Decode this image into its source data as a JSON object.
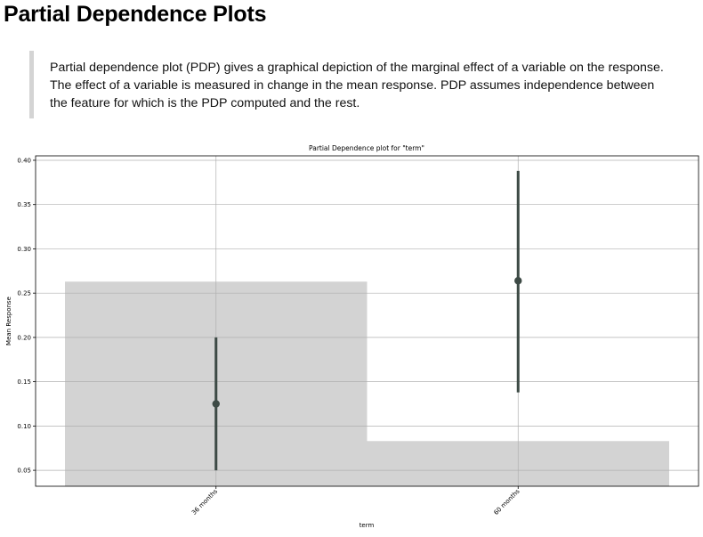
{
  "page": {
    "title": "Partial Dependence Plots",
    "description": "Partial dependence plot (PDP) gives a graphical depiction of the marginal effect of a variable on the response. The effect of a variable is measured in change in the mean response. PDP assumes independence between the feature for which is the PDP computed and the rest."
  },
  "colors": {
    "histogram": "#d3d3d3",
    "point": "#3d4a45",
    "grid": "#b0b0b0"
  },
  "chart_data": {
    "type": "scatter",
    "title": "Partial Dependence plot for \"term\"",
    "xlabel": "term",
    "ylabel": "Mean Response",
    "categories": [
      "36 months",
      "60 months"
    ],
    "values": [
      0.125,
      0.264
    ],
    "error_low": [
      0.05,
      0.138
    ],
    "error_high": [
      0.2,
      0.388
    ],
    "histogram": [
      0.263,
      0.083
    ],
    "ylim": [
      0.032,
      0.405
    ],
    "yticks": [
      0.05,
      0.1,
      0.15,
      0.2,
      0.25,
      0.3,
      0.35,
      0.4
    ],
    "ytick_labels": [
      "0.05",
      "0.10",
      "0.15",
      "0.20",
      "0.25",
      "0.30",
      "0.35",
      "0.40"
    ],
    "grid": true
  }
}
